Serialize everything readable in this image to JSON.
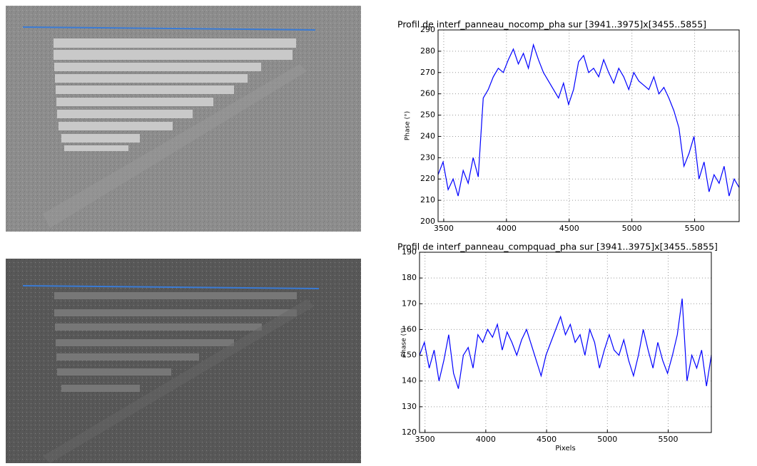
{
  "chart_data": [
    {
      "type": "line",
      "title": "Profil de interf_panneau_nocomp_pha sur [3941..3975]x[3455..5855]",
      "y_label": "Phase (°)",
      "color": "#0000ff",
      "grid": true,
      "xlim": [
        3455,
        5855
      ],
      "xticks": [
        3500,
        4000,
        4500,
        5000,
        5500
      ],
      "ylim": [
        200,
        290
      ],
      "yticks": [
        200,
        210,
        220,
        230,
        240,
        250,
        260,
        270,
        280,
        290
      ],
      "x": [
        3455,
        3495,
        3535,
        3575,
        3615,
        3655,
        3695,
        3735,
        3775,
        3815,
        3855,
        3895,
        3935,
        3975,
        4015,
        4055,
        4095,
        4135,
        4175,
        4215,
        4255,
        4295,
        4335,
        4375,
        4415,
        4455,
        4495,
        4535,
        4575,
        4615,
        4655,
        4695,
        4735,
        4775,
        4815,
        4855,
        4895,
        4935,
        4975,
        5015,
        5055,
        5095,
        5135,
        5175,
        5215,
        5255,
        5295,
        5335,
        5375,
        5415,
        5455,
        5495,
        5535,
        5575,
        5615,
        5655,
        5695,
        5735,
        5775,
        5815,
        5855
      ],
      "values": [
        222,
        228,
        215,
        220,
        212,
        224,
        218,
        230,
        221,
        258,
        262,
        268,
        272,
        270,
        276,
        281,
        274,
        279,
        272,
        283,
        276,
        270,
        266,
        262,
        258,
        265,
        255,
        262,
        275,
        278,
        270,
        272,
        268,
        276,
        270,
        265,
        272,
        268,
        262,
        270,
        266,
        264,
        262,
        268,
        260,
        263,
        258,
        252,
        244,
        226,
        232,
        240,
        220,
        228,
        214,
        222,
        218,
        226,
        212,
        220,
        216
      ]
    },
    {
      "type": "line",
      "title": "Profil de interf_panneau_compquad_pha sur [3941..3975]x[3455..5855]",
      "y_label": "Phase (°)",
      "x_label": "Pixels",
      "color": "#0000ff",
      "grid": true,
      "xlim": [
        3455,
        5855
      ],
      "xticks": [
        3500,
        4000,
        4500,
        5000,
        5500
      ],
      "ylim": [
        120,
        190
      ],
      "yticks": [
        120,
        130,
        140,
        150,
        160,
        170,
        180,
        190
      ],
      "x": [
        3455,
        3495,
        3535,
        3575,
        3615,
        3655,
        3695,
        3735,
        3775,
        3815,
        3855,
        3895,
        3935,
        3975,
        4015,
        4055,
        4095,
        4135,
        4175,
        4215,
        4255,
        4295,
        4335,
        4375,
        4415,
        4455,
        4495,
        4535,
        4575,
        4615,
        4655,
        4695,
        4735,
        4775,
        4815,
        4855,
        4895,
        4935,
        4975,
        5015,
        5055,
        5095,
        5135,
        5175,
        5215,
        5255,
        5295,
        5335,
        5375,
        5415,
        5455,
        5495,
        5535,
        5575,
        5615,
        5655,
        5695,
        5735,
        5775,
        5815,
        5855
      ],
      "values": [
        150,
        155,
        145,
        152,
        140,
        148,
        158,
        143,
        137,
        150,
        153,
        145,
        158,
        155,
        160,
        157,
        162,
        152,
        159,
        155,
        150,
        156,
        160,
        154,
        148,
        142,
        150,
        155,
        160,
        165,
        158,
        162,
        155,
        158,
        150,
        160,
        155,
        145,
        152,
        158,
        152,
        150,
        156,
        148,
        142,
        150,
        160,
        152,
        145,
        155,
        148,
        143,
        150,
        158,
        172,
        140,
        150,
        145,
        152,
        138,
        150
      ]
    }
  ]
}
